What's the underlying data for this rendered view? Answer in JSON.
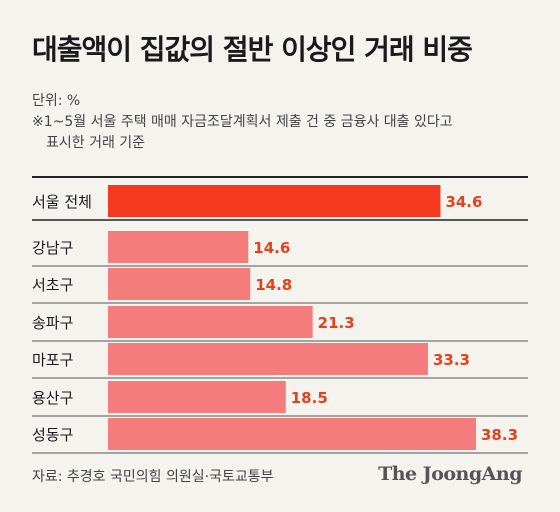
{
  "title": "대출액이 집값의 절반 이상인 거래 비중",
  "unit": "단위: %",
  "note": [
    "※1~5월 서울 주택 매매 자금조달계획서 제출 건 중 금융사 대출 있다고",
    "표시한 거래 기준"
  ],
  "chart_data": {
    "type": "bar",
    "orientation": "horizontal",
    "categories": [
      "서울 전체",
      "강남구",
      "서초구",
      "송파구",
      "마포구",
      "용산구",
      "성동구"
    ],
    "values": [
      34.6,
      14.6,
      14.8,
      21.3,
      33.3,
      18.5,
      38.3
    ],
    "value_labels": [
      "34.6",
      "14.6",
      "14.8",
      "21.3",
      "33.3",
      "18.5",
      "38.3"
    ],
    "highlight_index": 0,
    "colors": {
      "highlight": "#f5391e",
      "bar": "#f47c7c",
      "label": "#e8401c",
      "divider": "#222222",
      "row_line": "#333333"
    },
    "xlim": [
      0,
      38.3
    ]
  },
  "footer": {
    "source": "자료: 추경호 국민의힘 의원실·국토교통부",
    "logo": "The JoongAng"
  }
}
